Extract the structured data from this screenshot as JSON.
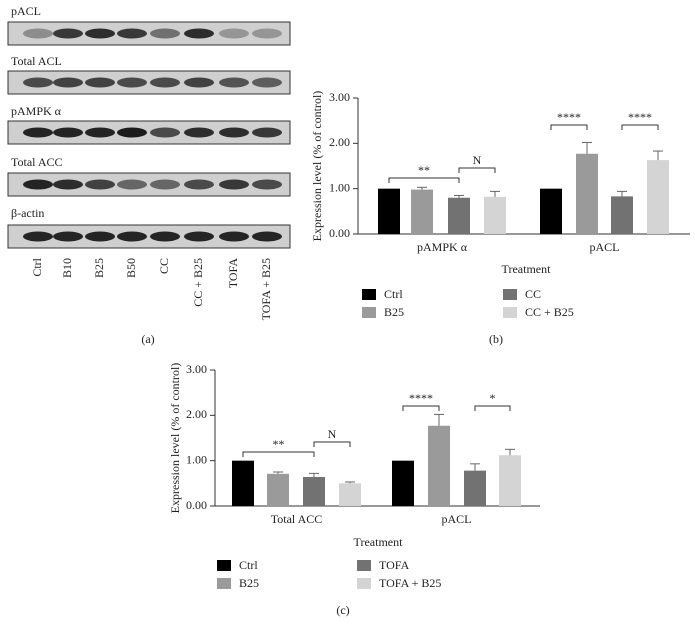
{
  "blot": {
    "rows": [
      "pACL",
      "Total ACL",
      "pAMPK α",
      "Total ACC",
      "β-actin"
    ],
    "lanes": [
      "Ctrl",
      "B10",
      "B25",
      "B50",
      "CC",
      "CC + B25",
      "TOFA",
      "TOFA + B25"
    ],
    "panel": "(a)"
  },
  "chart_data": [
    {
      "type": "bar",
      "panel": "(b)",
      "ylabel": "Expression level (% of control)",
      "xlabel": "Treatment",
      "categories": [
        "pAMPK α",
        "pACL"
      ],
      "ylim": [
        0,
        3
      ],
      "yticks": [
        {
          "value": 0,
          "label": "0.00"
        },
        {
          "value": 1,
          "label": "1.00"
        },
        {
          "value": 2,
          "label": "2.00"
        },
        {
          "value": 3,
          "label": "3.00"
        }
      ],
      "series": [
        {
          "name": "Ctrl",
          "color": "#000000",
          "values": [
            1.0,
            1.0
          ],
          "errors": [
            null,
            null
          ]
        },
        {
          "name": "B25",
          "color": "#9a9a9a",
          "values": [
            0.98,
            1.77
          ],
          "errors": [
            0.05,
            0.25
          ]
        },
        {
          "name": "CC",
          "color": "#727272",
          "values": [
            0.8,
            0.83
          ],
          "errors": [
            0.05,
            0.11
          ]
        },
        {
          "name": "CC + B25",
          "color": "#d4d4d4",
          "values": [
            0.82,
            1.63
          ],
          "errors": [
            0.12,
            0.2
          ]
        }
      ],
      "annotations": [
        "**",
        "N",
        "****",
        "****"
      ]
    },
    {
      "type": "bar",
      "panel": "(c)",
      "ylabel": "Expression level (% of control)",
      "xlabel": "Treatment",
      "categories": [
        "Total ACC",
        "pACL"
      ],
      "ylim": [
        0,
        3
      ],
      "yticks": [
        {
          "value": 0,
          "label": "0.00"
        },
        {
          "value": 1,
          "label": "1.00"
        },
        {
          "value": 2,
          "label": "2.00"
        },
        {
          "value": 3,
          "label": "3.00"
        }
      ],
      "series": [
        {
          "name": "Ctrl",
          "color": "#000000",
          "values": [
            1.0,
            1.0
          ],
          "errors": [
            null,
            null
          ]
        },
        {
          "name": "B25",
          "color": "#9a9a9a",
          "values": [
            0.71,
            1.77
          ],
          "errors": [
            0.04,
            0.25
          ]
        },
        {
          "name": "TOFA",
          "color": "#727272",
          "values": [
            0.64,
            0.78
          ],
          "errors": [
            0.08,
            0.15
          ]
        },
        {
          "name": "TOFA + B25",
          "color": "#d4d4d4",
          "values": [
            0.5,
            1.12
          ],
          "errors": [
            0.03,
            0.13
          ]
        }
      ],
      "annotations": [
        "**",
        "N",
        "****",
        "*"
      ]
    }
  ]
}
